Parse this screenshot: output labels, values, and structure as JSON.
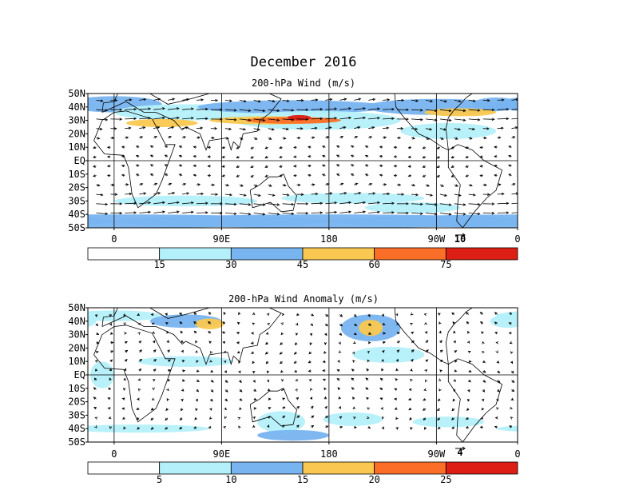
{
  "header": {
    "title": "December 2016"
  },
  "chart_data": [
    {
      "type": "heatmap",
      "title": "200-hPa Wind (m/s)",
      "xlabel": "",
      "ylabel": "",
      "x_ticks": [
        "0",
        "90E",
        "180",
        "90W",
        "0"
      ],
      "y_ticks": [
        "50N",
        "40N",
        "30N",
        "20N",
        "10N",
        "EQ",
        "10S",
        "20S",
        "30S",
        "40S",
        "50S"
      ],
      "ylim": [
        -50,
        50
      ],
      "colorbar_levels": [
        15,
        30,
        45,
        60,
        75
      ],
      "colorbar_colors": [
        "#ffffff",
        "#b4f0fa",
        "#78b4f0",
        "#fac850",
        "#fa6e28",
        "#dc1e14"
      ],
      "reference_vector": "10",
      "series": [
        {
          "name": "wind speed band 15-30",
          "values": [
            {
              "lon": 0,
              "lat": 30
            },
            {
              "lon": 180,
              "lat": -30
            }
          ]
        },
        {
          "name": "wind speed band 30-45",
          "values": [
            {
              "lon": 60,
              "lat": 35
            },
            {
              "lon": 0,
              "lat": -45
            }
          ]
        },
        {
          "name": "wind speed band 45-60",
          "values": [
            {
              "lon": 30,
              "lat": 30
            },
            {
              "lon": 140,
              "lat": 32
            }
          ]
        },
        {
          "name": "wind speed band 60-75",
          "values": [
            {
              "lon": 150,
              "lat": 33
            }
          ]
        }
      ]
    },
    {
      "type": "heatmap",
      "title": "200-hPa Wind Anomaly (m/s)",
      "xlabel": "",
      "ylabel": "",
      "x_ticks": [
        "0",
        "90E",
        "180",
        "90W",
        "0"
      ],
      "y_ticks": [
        "50N",
        "40N",
        "30N",
        "20N",
        "10N",
        "EQ",
        "10S",
        "20S",
        "30S",
        "40S",
        "50S"
      ],
      "ylim": [
        -50,
        50
      ],
      "colorbar_levels": [
        5,
        10,
        15,
        20,
        25
      ],
      "colorbar_colors": [
        "#ffffff",
        "#b4f0fa",
        "#78b4f0",
        "#fac850",
        "#fa6e28",
        "#dc1e14"
      ],
      "reference_vector": "4",
      "series": [
        {
          "name": "anomaly band 5-10",
          "values": [
            {
              "lon": 20,
              "lat": 35
            },
            {
              "lon": 210,
              "lat": 35
            }
          ]
        },
        {
          "name": "anomaly band 10-15",
          "values": [
            {
              "lon": 60,
              "lat": 40
            },
            {
              "lon": 215,
              "lat": 38
            }
          ]
        },
        {
          "name": "anomaly band 15-20",
          "values": [
            {
              "lon": 70,
              "lat": 40
            },
            {
              "lon": 215,
              "lat": 35
            }
          ]
        }
      ]
    }
  ]
}
